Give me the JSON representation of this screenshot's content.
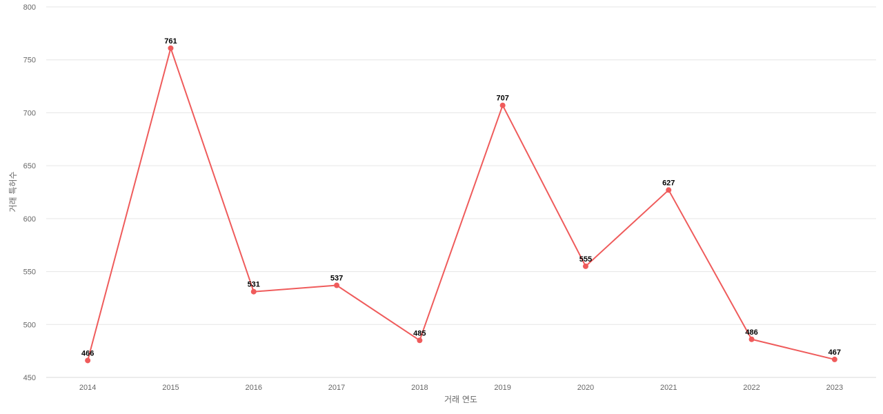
{
  "chart_data": {
    "type": "line",
    "title": "",
    "xlabel": "거래 연도",
    "ylabel": "거래 특허수",
    "x": [
      "2014",
      "2015",
      "2016",
      "2017",
      "2018",
      "2019",
      "2020",
      "2021",
      "2022",
      "2023"
    ],
    "series": [
      {
        "values": [
          466,
          761,
          531,
          537,
          485,
          707,
          555,
          627,
          486,
          467
        ],
        "color": "#ef5b5b"
      }
    ],
    "ylim": [
      450,
      800
    ],
    "yticks": [
      450,
      500,
      550,
      600,
      650,
      700,
      750,
      800
    ],
    "grid": true,
    "data_labels": true
  }
}
